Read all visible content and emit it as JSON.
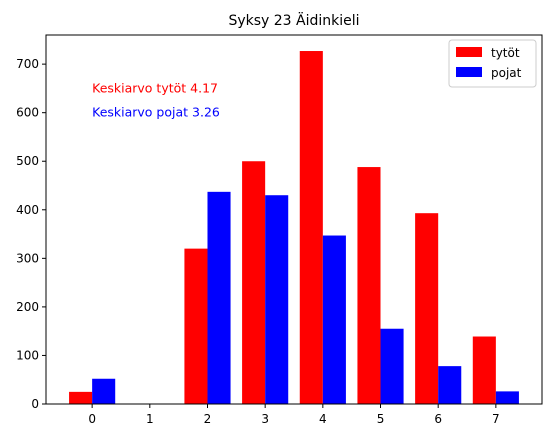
{
  "chart_data": {
    "type": "bar",
    "title": "Syksy 23 Äidinkieli",
    "xlabel": "",
    "ylabel": "",
    "x": [
      0,
      1,
      2,
      3,
      4,
      5,
      6,
      7
    ],
    "xlim": [
      -0.8,
      7.8
    ],
    "ylim": [
      0,
      760
    ],
    "x_ticks": [
      "0",
      "1",
      "2",
      "3",
      "4",
      "5",
      "6",
      "7"
    ],
    "y_ticks": [
      "0",
      "100",
      "200",
      "300",
      "400",
      "500",
      "600",
      "700"
    ],
    "grid": false,
    "legend_position": "top-right",
    "series": [
      {
        "name": "tytöt",
        "color": "#ff0000",
        "values": [
          25,
          0,
          320,
          500,
          727,
          488,
          393,
          139
        ]
      },
      {
        "name": "pojat",
        "color": "#0000ff",
        "values": [
          52,
          0,
          437,
          430,
          347,
          155,
          78,
          26
        ]
      }
    ],
    "annotations": [
      {
        "text": "Keskiarvo tytöt 4.17",
        "color": "#ff0000",
        "x": 0,
        "y": 650
      },
      {
        "text": "Keskiarvo pojat 3.26",
        "color": "#0000ff",
        "x": 0,
        "y": 600
      }
    ]
  }
}
